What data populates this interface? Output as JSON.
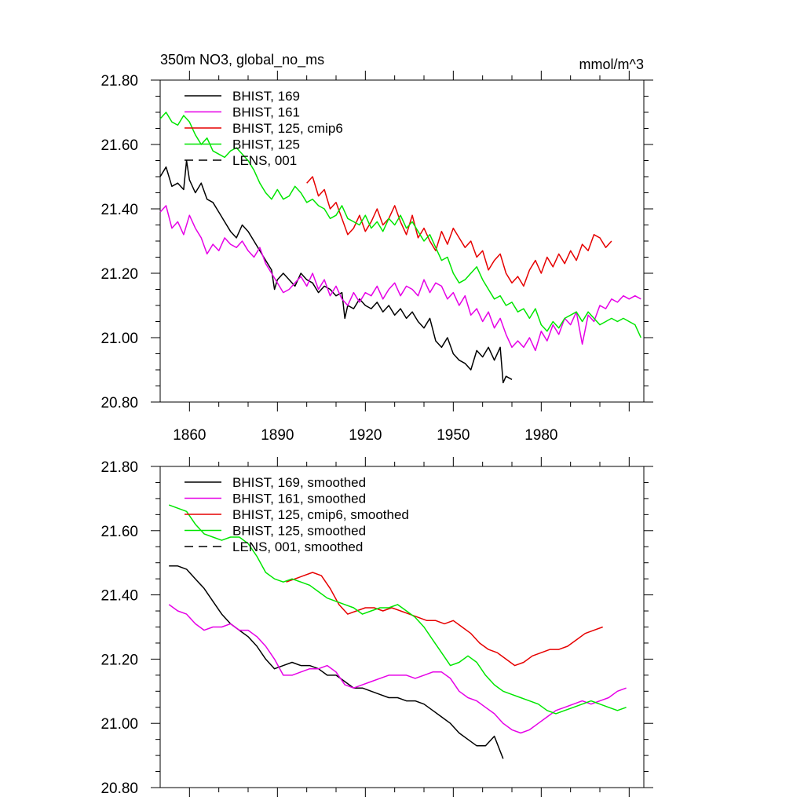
{
  "chart_data": [
    {
      "type": "line",
      "title": "350m NO3, global_no_ms",
      "units": "mmol/m^3",
      "xlim": [
        1850,
        2015
      ],
      "ylim": [
        20.8,
        21.8
      ],
      "yticks": [
        "20.80",
        "21.00",
        "21.20",
        "21.40",
        "21.60",
        "21.80"
      ],
      "xticks": [
        "1860",
        "1890",
        "1920",
        "1950",
        "1980"
      ],
      "grid": false,
      "legend_position": "top-left",
      "series": [
        {
          "name": "BHIST, 169",
          "color": "#000000",
          "dash": "solid",
          "x": [
            1850,
            1852,
            1854,
            1856,
            1858,
            1859,
            1860,
            1862,
            1864,
            1866,
            1868,
            1870,
            1872,
            1874,
            1876,
            1878,
            1880,
            1882,
            1884,
            1886,
            1888,
            1889,
            1890,
            1892,
            1894,
            1896,
            1898,
            1900,
            1902,
            1904,
            1906,
            1908,
            1910,
            1912,
            1913,
            1914,
            1916,
            1918,
            1920,
            1922,
            1924,
            1926,
            1928,
            1930,
            1932,
            1934,
            1936,
            1938,
            1940,
            1942,
            1944,
            1946,
            1948,
            1950,
            1952,
            1954,
            1956,
            1958,
            1960,
            1962,
            1964,
            1966,
            1967,
            1968,
            1970
          ],
          "y": [
            21.5,
            21.53,
            21.47,
            21.48,
            21.46,
            21.55,
            21.49,
            21.45,
            21.48,
            21.43,
            21.42,
            21.39,
            21.36,
            21.33,
            21.31,
            21.35,
            21.33,
            21.3,
            21.27,
            21.24,
            21.21,
            21.15,
            21.18,
            21.2,
            21.18,
            21.16,
            21.2,
            21.18,
            21.17,
            21.14,
            21.16,
            21.15,
            21.13,
            21.14,
            21.06,
            21.1,
            21.09,
            21.12,
            21.1,
            21.09,
            21.11,
            21.08,
            21.1,
            21.07,
            21.09,
            21.06,
            21.08,
            21.05,
            21.03,
            21.06,
            20.99,
            20.97,
            21.0,
            20.95,
            20.93,
            20.92,
            20.9,
            20.96,
            20.94,
            20.97,
            20.93,
            20.97,
            20.86,
            20.88,
            20.87
          ]
        },
        {
          "name": "BHIST, 161",
          "color": "#e600e6",
          "dash": "solid",
          "x": [
            1850,
            1852,
            1854,
            1856,
            1858,
            1860,
            1862,
            1864,
            1866,
            1868,
            1870,
            1872,
            1874,
            1876,
            1878,
            1880,
            1882,
            1884,
            1886,
            1888,
            1890,
            1892,
            1894,
            1896,
            1898,
            1900,
            1902,
            1904,
            1906,
            1908,
            1910,
            1912,
            1914,
            1916,
            1918,
            1920,
            1922,
            1924,
            1926,
            1928,
            1930,
            1932,
            1934,
            1936,
            1938,
            1940,
            1942,
            1944,
            1946,
            1948,
            1950,
            1952,
            1954,
            1956,
            1958,
            1960,
            1962,
            1964,
            1966,
            1968,
            1970,
            1972,
            1974,
            1976,
            1978,
            1980,
            1982,
            1984,
            1986,
            1988,
            1990,
            1992,
            1994,
            1996,
            1998,
            2000,
            2002,
            2004,
            2006,
            2008,
            2010,
            2012,
            2014
          ],
          "y": [
            21.39,
            21.41,
            21.34,
            21.36,
            21.32,
            21.38,
            21.34,
            21.31,
            21.26,
            21.29,
            21.27,
            21.31,
            21.29,
            21.28,
            21.3,
            21.27,
            21.25,
            21.28,
            21.23,
            21.2,
            21.17,
            21.14,
            21.15,
            21.17,
            21.19,
            21.16,
            21.2,
            21.15,
            21.18,
            21.13,
            21.16,
            21.12,
            21.1,
            21.14,
            21.11,
            21.14,
            21.13,
            21.16,
            21.12,
            21.15,
            21.17,
            21.13,
            21.16,
            21.15,
            21.13,
            21.18,
            21.14,
            21.17,
            21.16,
            21.12,
            21.14,
            21.1,
            21.13,
            21.07,
            21.09,
            21.05,
            21.08,
            21.03,
            21.06,
            21.01,
            20.97,
            20.99,
            20.97,
            21.0,
            20.96,
            21.02,
            20.99,
            21.04,
            21.01,
            21.06,
            21.04,
            21.08,
            20.98,
            21.07,
            21.05,
            21.1,
            21.09,
            21.12,
            21.11,
            21.13,
            21.12,
            21.13,
            21.12
          ]
        },
        {
          "name": "BHIST, 125, cmip6",
          "color": "#e60000",
          "dash": "solid",
          "x": [
            1900,
            1902,
            1904,
            1906,
            1908,
            1910,
            1912,
            1914,
            1916,
            1918,
            1920,
            1922,
            1924,
            1926,
            1928,
            1930,
            1932,
            1934,
            1936,
            1938,
            1940,
            1942,
            1944,
            1946,
            1948,
            1950,
            1952,
            1954,
            1956,
            1958,
            1960,
            1962,
            1964,
            1966,
            1968,
            1970,
            1972,
            1974,
            1976,
            1978,
            1980,
            1982,
            1984,
            1986,
            1988,
            1990,
            1992,
            1994,
            1996,
            1998,
            2000,
            2002,
            2004
          ],
          "y": [
            21.48,
            21.5,
            21.44,
            21.46,
            21.4,
            21.42,
            21.37,
            21.32,
            21.34,
            21.38,
            21.33,
            21.36,
            21.4,
            21.35,
            21.37,
            21.41,
            21.36,
            21.32,
            21.38,
            21.31,
            21.34,
            21.3,
            21.27,
            21.33,
            21.29,
            21.34,
            21.31,
            21.28,
            21.3,
            21.25,
            21.27,
            21.21,
            21.24,
            21.26,
            21.2,
            21.17,
            21.19,
            21.16,
            21.21,
            21.24,
            21.2,
            21.25,
            21.22,
            21.26,
            21.23,
            21.27,
            21.24,
            21.29,
            21.27,
            21.32,
            21.31,
            21.28,
            21.3
          ]
        },
        {
          "name": "BHIST, 125",
          "color": "#00e600",
          "dash": "solid",
          "x": [
            1850,
            1852,
            1854,
            1856,
            1858,
            1860,
            1862,
            1864,
            1866,
            1868,
            1870,
            1872,
            1874,
            1876,
            1878,
            1880,
            1882,
            1884,
            1886,
            1888,
            1890,
            1892,
            1894,
            1896,
            1898,
            1900,
            1902,
            1904,
            1906,
            1908,
            1910,
            1912,
            1914,
            1916,
            1918,
            1920,
            1922,
            1924,
            1926,
            1928,
            1930,
            1932,
            1934,
            1936,
            1938,
            1940,
            1942,
            1944,
            1946,
            1948,
            1950,
            1952,
            1954,
            1956,
            1958,
            1960,
            1962,
            1964,
            1966,
            1968,
            1970,
            1972,
            1974,
            1976,
            1978,
            1980,
            1982,
            1984,
            1986,
            1988,
            1990,
            1992,
            1994,
            1996,
            1998,
            2000,
            2002,
            2004,
            2006,
            2008,
            2010,
            2012,
            2014
          ],
          "y": [
            21.68,
            21.7,
            21.67,
            21.66,
            21.69,
            21.67,
            21.63,
            21.6,
            21.62,
            21.58,
            21.57,
            21.56,
            21.58,
            21.59,
            21.57,
            21.55,
            21.52,
            21.48,
            21.45,
            21.43,
            21.46,
            21.43,
            21.44,
            21.47,
            21.45,
            21.42,
            21.43,
            21.41,
            21.4,
            21.37,
            21.38,
            21.41,
            21.37,
            21.36,
            21.35,
            21.38,
            21.34,
            21.36,
            21.33,
            21.37,
            21.35,
            21.38,
            21.34,
            21.36,
            21.33,
            21.3,
            21.32,
            21.28,
            21.24,
            21.25,
            21.2,
            21.17,
            21.18,
            21.2,
            21.22,
            21.18,
            21.15,
            21.12,
            21.13,
            21.1,
            21.11,
            21.08,
            21.09,
            21.06,
            21.09,
            21.04,
            21.02,
            21.05,
            21.03,
            21.06,
            21.07,
            21.08,
            21.05,
            21.08,
            21.06,
            21.04,
            21.05,
            21.06,
            21.05,
            21.06,
            21.05,
            21.04,
            21.0
          ]
        },
        {
          "name": "LENS, 001",
          "color": "#000000",
          "dash": "dashed",
          "x": [],
          "y": []
        }
      ]
    },
    {
      "type": "line",
      "title": "",
      "units": "",
      "xlim": [
        1850,
        2015
      ],
      "ylim": [
        20.8,
        21.8
      ],
      "yticks": [
        "20.80",
        "21.00",
        "21.20",
        "21.40",
        "21.60",
        "21.80"
      ],
      "xticks": [],
      "grid": false,
      "legend_position": "top-left",
      "series": [
        {
          "name": "BHIST, 169, smoothed",
          "color": "#000000",
          "dash": "solid",
          "x": [
            1853,
            1856,
            1859,
            1862,
            1865,
            1868,
            1871,
            1874,
            1877,
            1880,
            1883,
            1886,
            1889,
            1892,
            1895,
            1898,
            1901,
            1904,
            1907,
            1910,
            1913,
            1916,
            1919,
            1922,
            1925,
            1928,
            1931,
            1934,
            1937,
            1940,
            1943,
            1946,
            1949,
            1952,
            1955,
            1958,
            1961,
            1964,
            1967
          ],
          "y": [
            21.49,
            21.49,
            21.48,
            21.45,
            21.42,
            21.38,
            21.34,
            21.31,
            21.29,
            21.27,
            21.24,
            21.2,
            21.17,
            21.18,
            21.19,
            21.18,
            21.18,
            21.17,
            21.15,
            21.15,
            21.13,
            21.11,
            21.11,
            21.1,
            21.09,
            21.08,
            21.08,
            21.07,
            21.07,
            21.06,
            21.04,
            21.02,
            21.0,
            20.97,
            20.95,
            20.93,
            20.93,
            20.96,
            20.89
          ]
        },
        {
          "name": "BHIST, 161, smoothed",
          "color": "#e600e6",
          "dash": "solid",
          "x": [
            1853,
            1856,
            1859,
            1862,
            1865,
            1868,
            1871,
            1874,
            1877,
            1880,
            1883,
            1886,
            1889,
            1892,
            1895,
            1898,
            1901,
            1904,
            1907,
            1910,
            1913,
            1916,
            1919,
            1922,
            1925,
            1928,
            1931,
            1934,
            1937,
            1940,
            1943,
            1946,
            1949,
            1952,
            1955,
            1958,
            1961,
            1964,
            1967,
            1970,
            1973,
            1976,
            1979,
            1982,
            1985,
            1988,
            1991,
            1994,
            1997,
            2000,
            2003,
            2006,
            2009
          ],
          "y": [
            21.37,
            21.35,
            21.34,
            21.31,
            21.29,
            21.3,
            21.3,
            21.31,
            21.29,
            21.29,
            21.27,
            21.24,
            21.2,
            21.15,
            21.15,
            21.16,
            21.17,
            21.17,
            21.18,
            21.16,
            21.12,
            21.11,
            21.12,
            21.13,
            21.14,
            21.15,
            21.15,
            21.15,
            21.14,
            21.15,
            21.16,
            21.16,
            21.14,
            21.1,
            21.08,
            21.07,
            21.05,
            21.03,
            21.0,
            20.98,
            20.97,
            20.98,
            21.0,
            21.02,
            21.04,
            21.05,
            21.06,
            21.07,
            21.06,
            21.07,
            21.08,
            21.1,
            21.11
          ]
        },
        {
          "name": "BHIST, 125, cmip6, smoothed",
          "color": "#e60000",
          "dash": "solid",
          "x": [
            1893,
            1896,
            1899,
            1902,
            1905,
            1908,
            1911,
            1914,
            1917,
            1920,
            1923,
            1926,
            1929,
            1932,
            1935,
            1938,
            1941,
            1944,
            1947,
            1950,
            1953,
            1956,
            1959,
            1962,
            1965,
            1968,
            1971,
            1974,
            1977,
            1980,
            1983,
            1986,
            1989,
            1992,
            1995,
            1998,
            2001
          ],
          "y": [
            21.44,
            21.45,
            21.46,
            21.47,
            21.46,
            21.42,
            21.37,
            21.34,
            21.35,
            21.36,
            21.36,
            21.35,
            21.36,
            21.35,
            21.34,
            21.33,
            21.32,
            21.32,
            21.31,
            21.32,
            21.3,
            21.28,
            21.25,
            21.23,
            21.22,
            21.2,
            21.18,
            21.19,
            21.21,
            21.22,
            21.23,
            21.23,
            21.24,
            21.26,
            21.28,
            21.29,
            21.3
          ]
        },
        {
          "name": "BHIST, 125, smoothed",
          "color": "#00e600",
          "dash": "solid",
          "x": [
            1853,
            1856,
            1859,
            1862,
            1865,
            1868,
            1871,
            1874,
            1877,
            1880,
            1883,
            1886,
            1889,
            1892,
            1895,
            1898,
            1901,
            1904,
            1907,
            1910,
            1913,
            1916,
            1919,
            1922,
            1925,
            1928,
            1931,
            1934,
            1937,
            1940,
            1943,
            1946,
            1949,
            1952,
            1955,
            1958,
            1961,
            1964,
            1967,
            1970,
            1973,
            1976,
            1979,
            1982,
            1985,
            1988,
            1991,
            1994,
            1997,
            2000,
            2003,
            2006,
            2009
          ],
          "y": [
            21.68,
            21.67,
            21.66,
            21.62,
            21.59,
            21.58,
            21.57,
            21.58,
            21.58,
            21.56,
            21.52,
            21.47,
            21.45,
            21.44,
            21.45,
            21.44,
            21.43,
            21.41,
            21.39,
            21.38,
            21.37,
            21.36,
            21.34,
            21.35,
            21.36,
            21.36,
            21.37,
            21.35,
            21.33,
            21.3,
            21.26,
            21.22,
            21.18,
            21.19,
            21.21,
            21.19,
            21.15,
            21.12,
            21.1,
            21.09,
            21.08,
            21.07,
            21.06,
            21.04,
            21.03,
            21.04,
            21.05,
            21.06,
            21.07,
            21.06,
            21.05,
            21.04,
            21.05
          ]
        },
        {
          "name": "LENS, 001, smoothed",
          "color": "#000000",
          "dash": "dashed",
          "x": [],
          "y": []
        }
      ]
    }
  ]
}
